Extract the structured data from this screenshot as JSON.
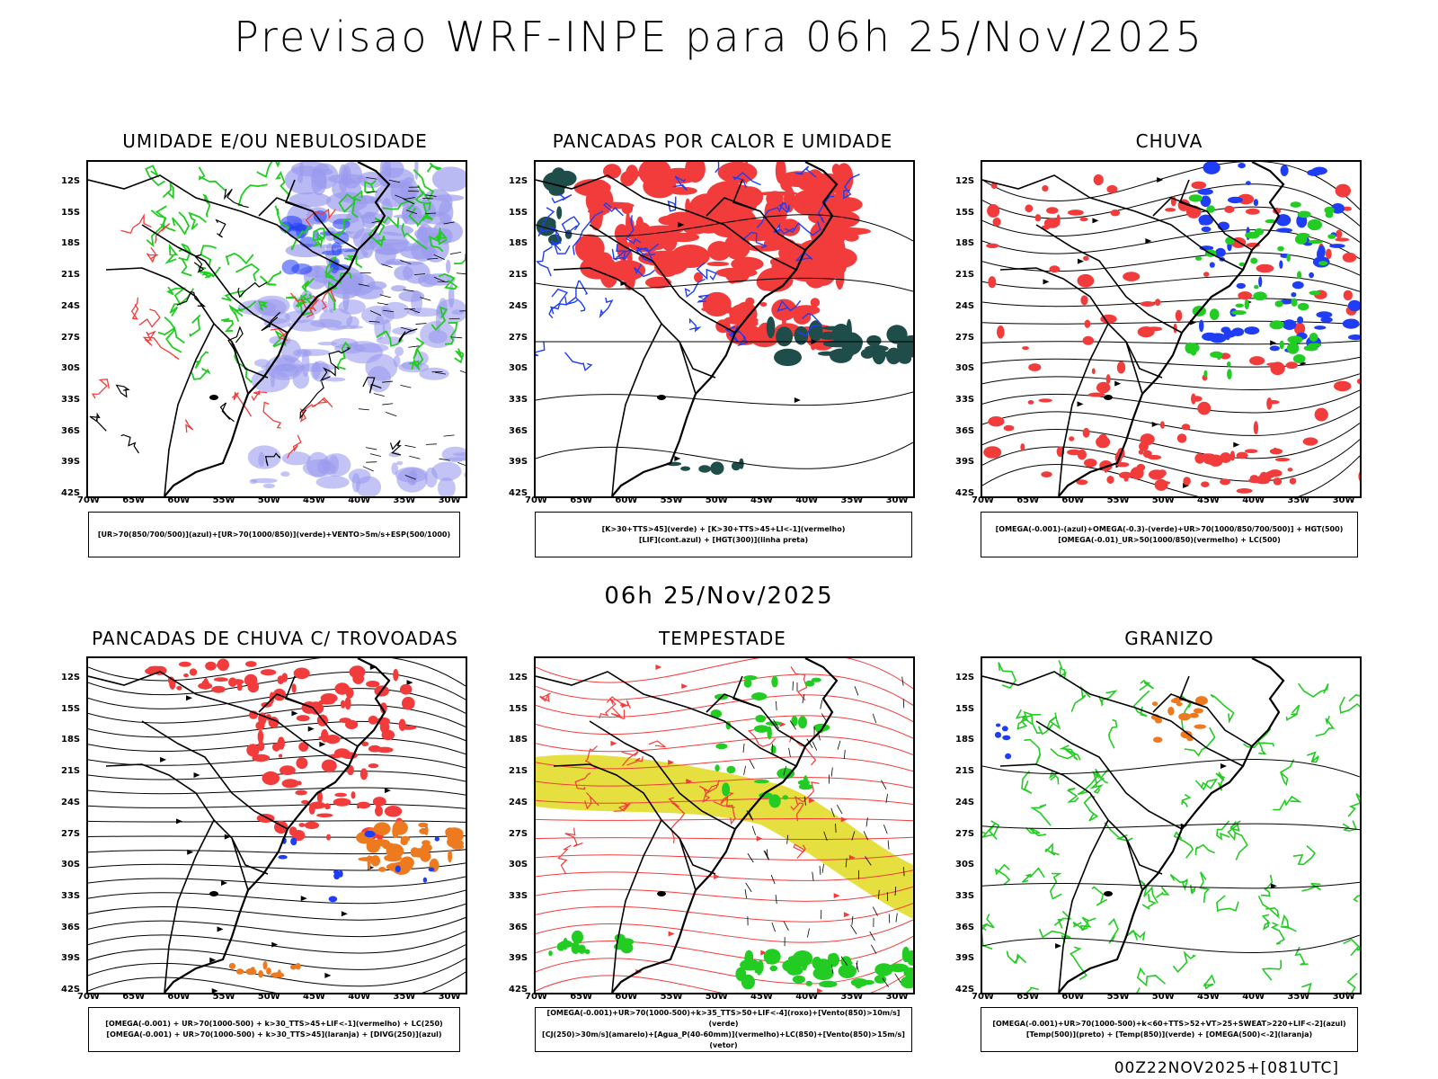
{
  "title": "Previsao WRF-INPE  para 06h 25/Nov/2025",
  "subtitle": "06h 25/Nov/2025",
  "footer": "00Z22NOV2025+[081UTC]",
  "y_labels": [
    "12S",
    "15S",
    "18S",
    "21S",
    "24S",
    "27S",
    "30S",
    "33S",
    "36S",
    "39S",
    "42S"
  ],
  "x_labels": [
    "70W",
    "65W",
    "60W",
    "55W",
    "50W",
    "45W",
    "40W",
    "35W",
    "30W"
  ],
  "colors": {
    "blue": "#1f3df5",
    "green": "#22cc22",
    "red": "#f23c3c",
    "orange": "#ee7a1f",
    "lavender": "#9b9bee",
    "yellow": "#e2dc2a",
    "teal": "#1f4d4a",
    "black": "#000000"
  },
  "panels": [
    {
      "title": "UMIDADE E/OU NEBULOSIDADE",
      "legend": [
        "[UR>70(850/700/500)](azul)+[UR>70(1000/850)](verde)+VENTO>5m/s+ESP(500/1000)"
      ]
    },
    {
      "title": "PANCADAS POR CALOR E UMIDADE",
      "legend": [
        "[K>30+TTS>45](verde) + [K>30+TTS>45+LI<-1](vermelho)",
        "[LIF](cont.azul) + [HGT(300)](linha preta)"
      ]
    },
    {
      "title": "CHUVA",
      "legend": [
        "[OMEGA(-0.001)-(azul)+OMEGA(-0.3)-(verde)+UR>70(1000/850/700/500)] + HGT(500)",
        "[OMEGA(-0.01)_UR>50(1000/850)(vermelho) + LC(500)"
      ]
    },
    {
      "title": "PANCADAS DE CHUVA C/ TROVOADAS",
      "legend": [
        "[OMEGA(-0.001) + UR>70(1000-500) + k>30_TTS>45+LIF<-1](vermelho) + LC(250)",
        "[OMEGA(-0.001) + UR>70(1000-500) + k>30_TTS>45](laranja) + [DIVG(250)](azul)"
      ]
    },
    {
      "title": "TEMPESTADE",
      "legend": [
        "[OMEGA(-0.001)+UR>70(1000-500)+k>35_TTS>50+LIF<-4](roxo)+[Vento(850)>10m/s](verde)",
        "[CJ(250)>30m/s](amarelo)+[Agua_P(40-60mm)](vermelho)+LC(850)+[Vento(850)>15m/s](vetor)"
      ]
    },
    {
      "title": "GRANIZO",
      "legend": [
        "[OMEGA(-0.001)+UR>70(1000-500)+k<60+TTS>52+VT>25+SWEAT>220+LIF<-2](azul)",
        "[Temp(500)](preto) + [Temp(850)](verde) + [OMEGA(500)<-2](laranja)"
      ]
    }
  ]
}
